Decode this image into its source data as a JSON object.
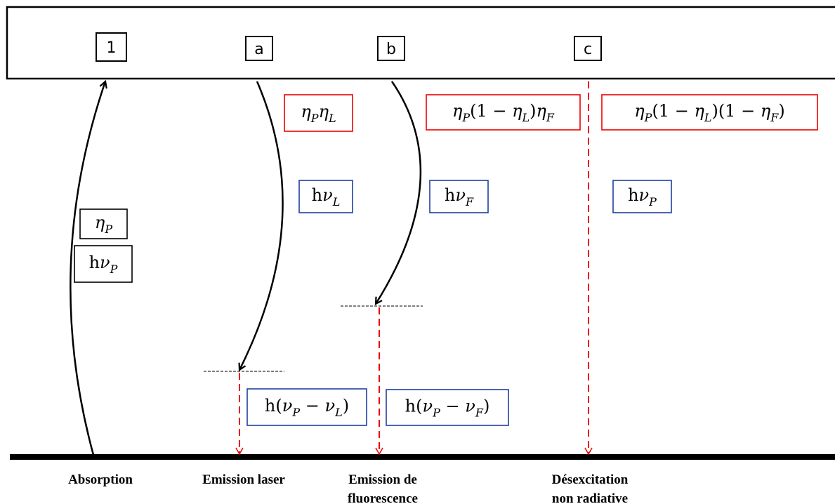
{
  "levels": [
    "1",
    "a",
    "b",
    "c"
  ],
  "formulas": [
    [
      {
        "base": "η",
        "sub": "P"
      }
    ],
    [
      "h",
      {
        "base": "ν",
        "sub": "P"
      }
    ],
    [
      {
        "base": "η",
        "sub": "P"
      },
      {
        "base": "η",
        "sub": "L"
      }
    ],
    [
      {
        "base": "η",
        "sub": "P"
      },
      "(1 − ",
      {
        "base": "η",
        "sub": "L"
      },
      ")",
      {
        "base": "η",
        "sub": "F"
      }
    ],
    [
      {
        "base": "η",
        "sub": "P"
      },
      "(1 − ",
      {
        "base": "η",
        "sub": "L"
      },
      ")(1 − ",
      {
        "base": "η",
        "sub": "F"
      },
      ")"
    ],
    [
      "h",
      {
        "base": "ν",
        "sub": "L"
      }
    ],
    [
      "h",
      {
        "base": "ν",
        "sub": "F"
      }
    ],
    [
      "h",
      {
        "base": "ν",
        "sub": "P"
      }
    ],
    [
      "h(",
      {
        "base": "ν",
        "sub": "P"
      },
      " − ",
      {
        "base": "ν",
        "sub": "L"
      },
      ")"
    ],
    [
      "h(",
      {
        "base": "ν",
        "sub": "P"
      },
      " − ",
      {
        "base": "ν",
        "sub": "F"
      },
      ")"
    ]
  ],
  "captions": [
    [
      "Absorption"
    ],
    [
      "Emission laser"
    ],
    [
      "Emission de",
      "fluorescence"
    ],
    [
      "Désexcitation",
      "non radiative"
    ]
  ]
}
